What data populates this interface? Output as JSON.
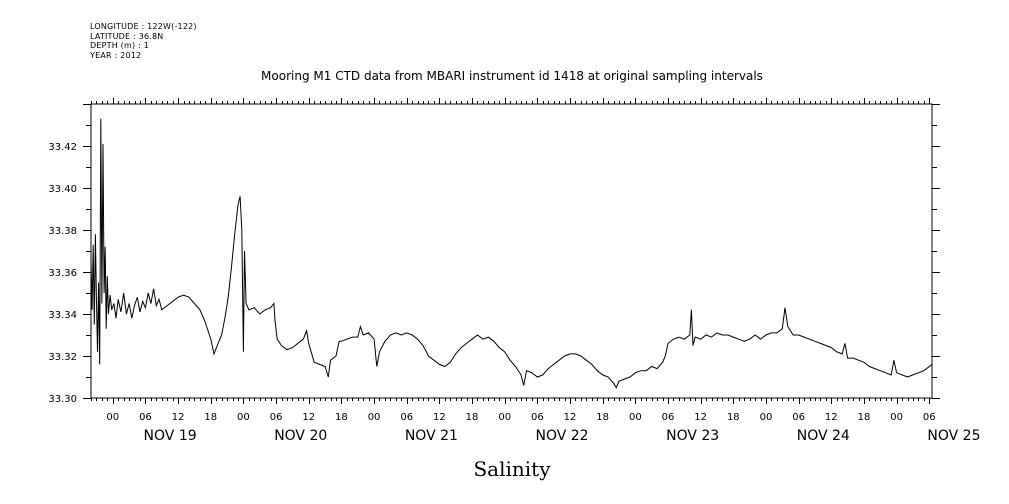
{
  "metadata": {
    "longitude": "LONGITUDE : 122W(-122)",
    "latitude": "LATITUDE : 36.8N",
    "depth": "DEPTH (m) : 1",
    "year": "YEAR : 2012"
  },
  "chart_data": {
    "type": "line",
    "title": "Mooring M1 CTD data from MBARI instrument id 1418 at original sampling intervals",
    "xlabel": "Salinity",
    "ylabel": "",
    "ylim": [
      33.3,
      33.44
    ],
    "yticks": [
      "33.30",
      "33.32",
      "33.34",
      "33.36",
      "33.38",
      "33.40",
      "33.42"
    ],
    "x_range_hours": [
      -4,
      150.5
    ],
    "hour_labels": [
      "00",
      "06",
      "12",
      "18"
    ],
    "day_labels": [
      "NOV 19",
      "NOV 20",
      "NOV 21",
      "NOV 22",
      "NOV 23",
      "NOV 24",
      "NOV 25"
    ],
    "series": [
      {
        "points": [
          [
            -4.0,
            33.365
          ],
          [
            -3.8,
            33.342
          ],
          [
            -3.6,
            33.373
          ],
          [
            -3.4,
            33.335
          ],
          [
            -3.2,
            33.378
          ],
          [
            -3.0,
            33.348
          ],
          [
            -2.8,
            33.322
          ],
          [
            -2.6,
            33.355
          ],
          [
            -2.4,
            33.316
          ],
          [
            -2.2,
            33.433
          ],
          [
            -2.0,
            33.345
          ],
          [
            -1.8,
            33.421
          ],
          [
            -1.6,
            33.35
          ],
          [
            -1.4,
            33.372
          ],
          [
            -1.2,
            33.333
          ],
          [
            -1.0,
            33.358
          ],
          [
            -0.8,
            33.34
          ],
          [
            -0.5,
            33.349
          ],
          [
            -0.2,
            33.342
          ],
          [
            0.2,
            33.345
          ],
          [
            0.6,
            33.338
          ],
          [
            1.0,
            33.347
          ],
          [
            1.5,
            33.341
          ],
          [
            2.0,
            33.35
          ],
          [
            2.5,
            33.34
          ],
          [
            3.0,
            33.345
          ],
          [
            3.5,
            33.338
          ],
          [
            4.0,
            33.344
          ],
          [
            4.5,
            33.348
          ],
          [
            5.0,
            33.341
          ],
          [
            5.5,
            33.346
          ],
          [
            6.0,
            33.343
          ],
          [
            6.5,
            33.35
          ],
          [
            7.0,
            33.345
          ],
          [
            7.5,
            33.352
          ],
          [
            8.0,
            33.344
          ],
          [
            8.5,
            33.347
          ],
          [
            9.0,
            33.342
          ],
          [
            10.0,
            33.344
          ],
          [
            11.0,
            33.346
          ],
          [
            12.0,
            33.348
          ],
          [
            13.0,
            33.349
          ],
          [
            14.0,
            33.348
          ],
          [
            15.0,
            33.345
          ],
          [
            16.0,
            33.342
          ],
          [
            17.0,
            33.336
          ],
          [
            18.0,
            33.328
          ],
          [
            18.6,
            33.321
          ],
          [
            19.2,
            33.325
          ],
          [
            20.0,
            33.33
          ],
          [
            20.6,
            33.338
          ],
          [
            21.2,
            33.348
          ],
          [
            21.8,
            33.362
          ],
          [
            22.4,
            33.378
          ],
          [
            23.0,
            33.392
          ],
          [
            23.4,
            33.396
          ],
          [
            23.7,
            33.38
          ],
          [
            24.0,
            33.322
          ],
          [
            24.2,
            33.37
          ],
          [
            24.5,
            33.345
          ],
          [
            25.0,
            33.342
          ],
          [
            26.0,
            33.343
          ],
          [
            27.0,
            33.34
          ],
          [
            28.0,
            33.342
          ],
          [
            29.0,
            33.343
          ],
          [
            29.6,
            33.345
          ],
          [
            29.8,
            33.337
          ],
          [
            30.2,
            33.328
          ],
          [
            31.0,
            33.325
          ],
          [
            32.0,
            33.323
          ],
          [
            33.0,
            33.324
          ],
          [
            34.0,
            33.326
          ],
          [
            35.0,
            33.328
          ],
          [
            35.6,
            33.332
          ],
          [
            36.0,
            33.326
          ],
          [
            37.0,
            33.317
          ],
          [
            38.0,
            33.316
          ],
          [
            39.0,
            33.315
          ],
          [
            39.6,
            33.31
          ],
          [
            40.0,
            33.318
          ],
          [
            41.0,
            33.32
          ],
          [
            41.6,
            33.327
          ],
          [
            42.0,
            33.327
          ],
          [
            43.0,
            33.328
          ],
          [
            44.0,
            33.329
          ],
          [
            45.0,
            33.329
          ],
          [
            45.5,
            33.334
          ],
          [
            46.0,
            33.33
          ],
          [
            47.0,
            33.331
          ],
          [
            48.0,
            33.328
          ],
          [
            48.5,
            33.315
          ],
          [
            49.0,
            33.322
          ],
          [
            50.0,
            33.327
          ],
          [
            51.0,
            33.33
          ],
          [
            52.0,
            33.331
          ],
          [
            53.0,
            33.33
          ],
          [
            54.0,
            33.331
          ],
          [
            55.0,
            33.33
          ],
          [
            56.0,
            33.328
          ],
          [
            57.0,
            33.325
          ],
          [
            58.0,
            33.32
          ],
          [
            59.0,
            33.318
          ],
          [
            60.0,
            33.316
          ],
          [
            61.0,
            33.315
          ],
          [
            62.0,
            33.317
          ],
          [
            63.0,
            33.321
          ],
          [
            64.0,
            33.324
          ],
          [
            65.0,
            33.326
          ],
          [
            66.0,
            33.328
          ],
          [
            67.0,
            33.33
          ],
          [
            68.0,
            33.328
          ],
          [
            69.0,
            33.329
          ],
          [
            70.0,
            33.327
          ],
          [
            71.0,
            33.324
          ],
          [
            72.0,
            33.322
          ],
          [
            73.0,
            33.318
          ],
          [
            74.0,
            33.315
          ],
          [
            75.0,
            33.311
          ],
          [
            75.5,
            33.306
          ],
          [
            76.0,
            33.313
          ],
          [
            77.0,
            33.312
          ],
          [
            78.0,
            33.31
          ],
          [
            79.0,
            33.311
          ],
          [
            80.0,
            33.314
          ],
          [
            81.0,
            33.316
          ],
          [
            82.0,
            33.318
          ],
          [
            83.0,
            33.32
          ],
          [
            84.0,
            33.321
          ],
          [
            85.0,
            33.321
          ],
          [
            86.0,
            33.32
          ],
          [
            87.0,
            33.318
          ],
          [
            88.0,
            33.316
          ],
          [
            89.0,
            33.313
          ],
          [
            90.0,
            33.311
          ],
          [
            91.0,
            33.31
          ],
          [
            92.0,
            33.307
          ],
          [
            92.5,
            33.305
          ],
          [
            93.0,
            33.308
          ],
          [
            94.0,
            33.309
          ],
          [
            95.0,
            33.31
          ],
          [
            96.0,
            33.312
          ],
          [
            97.0,
            33.313
          ],
          [
            98.0,
            33.313
          ],
          [
            99.0,
            33.315
          ],
          [
            100.0,
            33.314
          ],
          [
            101.0,
            33.317
          ],
          [
            101.5,
            33.32
          ],
          [
            102.0,
            33.326
          ],
          [
            103.0,
            33.328
          ],
          [
            104.0,
            33.329
          ],
          [
            105.0,
            33.328
          ],
          [
            106.0,
            33.33
          ],
          [
            106.3,
            33.342
          ],
          [
            106.6,
            33.325
          ],
          [
            107.0,
            33.329
          ],
          [
            108.0,
            33.328
          ],
          [
            109.0,
            33.33
          ],
          [
            110.0,
            33.329
          ],
          [
            111.0,
            33.331
          ],
          [
            112.0,
            33.33
          ],
          [
            113.0,
            33.33
          ],
          [
            114.0,
            33.329
          ],
          [
            115.0,
            33.328
          ],
          [
            116.0,
            33.327
          ],
          [
            117.0,
            33.328
          ],
          [
            118.0,
            33.33
          ],
          [
            119.0,
            33.328
          ],
          [
            120.0,
            33.33
          ],
          [
            121.0,
            33.331
          ],
          [
            122.0,
            33.331
          ],
          [
            123.0,
            33.333
          ],
          [
            123.5,
            33.343
          ],
          [
            124.0,
            33.334
          ],
          [
            125.0,
            33.33
          ],
          [
            126.0,
            33.33
          ],
          [
            127.0,
            33.329
          ],
          [
            128.0,
            33.328
          ],
          [
            129.0,
            33.327
          ],
          [
            130.0,
            33.326
          ],
          [
            131.0,
            33.325
          ],
          [
            132.0,
            33.324
          ],
          [
            133.0,
            33.322
          ],
          [
            134.0,
            33.321
          ],
          [
            134.5,
            33.326
          ],
          [
            135.0,
            33.319
          ],
          [
            136.0,
            33.319
          ],
          [
            137.0,
            33.318
          ],
          [
            138.0,
            33.317
          ],
          [
            139.0,
            33.315
          ],
          [
            140.0,
            33.314
          ],
          [
            141.0,
            33.313
          ],
          [
            142.0,
            33.312
          ],
          [
            143.0,
            33.311
          ],
          [
            143.5,
            33.318
          ],
          [
            144.0,
            33.312
          ],
          [
            145.0,
            33.311
          ],
          [
            146.0,
            33.31
          ],
          [
            147.0,
            33.311
          ],
          [
            148.0,
            33.312
          ],
          [
            149.0,
            33.313
          ],
          [
            150.0,
            33.315
          ],
          [
            150.5,
            33.316
          ]
        ]
      }
    ]
  }
}
